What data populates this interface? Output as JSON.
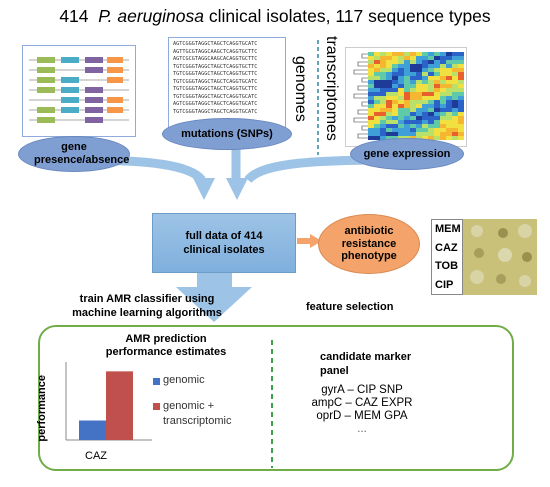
{
  "title": {
    "count": "414",
    "species": "P. aeruginosa",
    "rest": "clinical isolates, 117 sequence types"
  },
  "inputs": {
    "gene_presence_label": "gene presence/absence",
    "mutations_label": "mutations (SNPs)",
    "genomes_label": "genomes",
    "transcriptomes_label": "transcriptomes",
    "gene_expression_label": "gene expression",
    "sequence_lines": [
      "AGTCGGGTAGGCTAGCTCAGGTGCATC",
      "AGTTGCGTAGGCAAGCTCAGGTGCTTC",
      "AGTCGCGTAGGCAAGCACAGGTGCTTC",
      "TGTCGGGTAGGCTAGCTCAGGTGCTTC",
      "TGTCGGGTAGGCTAGCTCAGGTGCTTC",
      "TGTCGGGTAGGCTAGCTCAGGTGCATC",
      "TGTCGGGTAGGCTAGCTCAGGTGCTTC",
      "TGTCGGGTAGGCTAGCTCAGGTGCATC",
      "AGTCGGGTAGGCTAGCTCAGGTGCATC",
      "TGTCGGGTAGGCTAGCTCAGGTGCATC"
    ]
  },
  "center": {
    "full_data_label": "full data of 414 clinical isolates",
    "resistance_label": "antibiotic resistance phenotype",
    "antibiotics": [
      "MEM",
      "CAZ",
      "TOB",
      "CIP"
    ]
  },
  "steps": {
    "train_label": "train AMR classifier using machine learning algorithms",
    "feature_label": "feature selection"
  },
  "results": {
    "chart_title": "AMR prediction performance estimates",
    "ylabel": "performance",
    "category": "CAZ",
    "legend": [
      "genomic",
      "genomic + transcriptomic"
    ],
    "marker_title": "candidate marker panel",
    "markers": [
      "gyrA – CIP SNP",
      "ampC – CAZ EXPR",
      "oprD – MEM GPA",
      "..."
    ]
  },
  "chart_data": {
    "type": "bar",
    "title": "AMR prediction performance estimates",
    "xlabel": "",
    "ylabel": "performance",
    "categories": [
      "CAZ"
    ],
    "series": [
      {
        "name": "genomic",
        "values": [
          0.25
        ]
      },
      {
        "name": "genomic + transcriptomic",
        "values": [
          0.88
        ]
      }
    ],
    "ylim": [
      0,
      1
    ],
    "colors": {
      "genomic": "#4472c4",
      "genomic + transcriptomic": "#c0504d"
    }
  },
  "colors": {
    "arrow": "#9dc3e6",
    "green": "#70ad47",
    "teal_line": "#31859c"
  }
}
